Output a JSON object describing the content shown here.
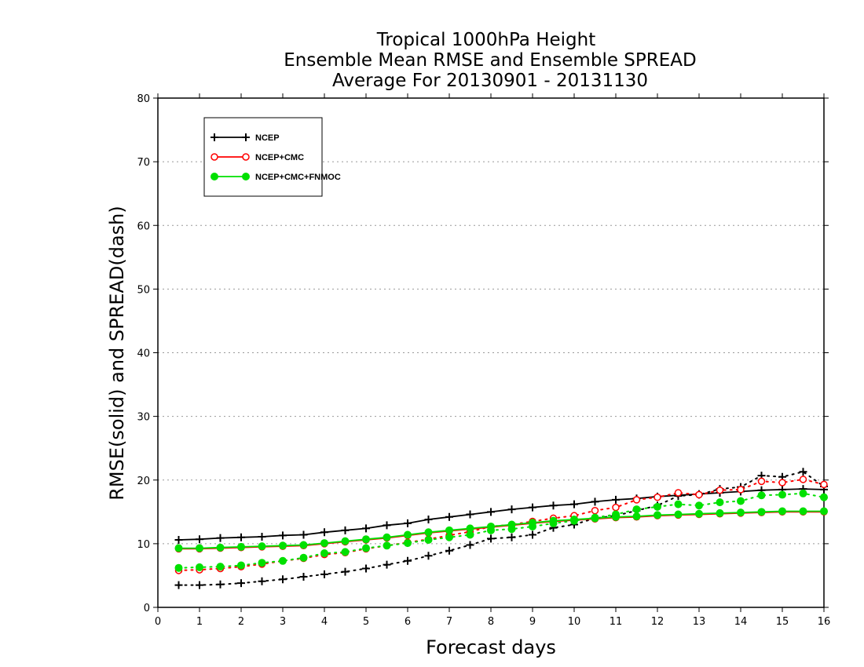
{
  "chart_data": {
    "type": "line",
    "title_lines": [
      "Tropical 1000hPa Height",
      "Ensemble Mean RMSE and Ensemble SPREAD",
      "Average For 20130901 - 20131130"
    ],
    "xlabel": "Forecast days",
    "ylabel": "RMSE(solid) and SPREAD(dash)",
    "xlim": [
      0,
      16
    ],
    "ylim": [
      0,
      80
    ],
    "xticks": [
      0,
      1,
      2,
      3,
      4,
      5,
      6,
      7,
      8,
      9,
      10,
      11,
      12,
      13,
      14,
      15,
      16
    ],
    "yticks": [
      0,
      10,
      20,
      30,
      40,
      50,
      60,
      70,
      80
    ],
    "grid": "horizontal dotted",
    "legend_position": "top-left",
    "x": [
      0.5,
      1,
      1.5,
      2,
      2.5,
      3,
      3.5,
      4,
      4.5,
      5,
      5.5,
      6,
      6.5,
      7,
      7.5,
      8,
      8.5,
      9,
      9.5,
      10,
      10.5,
      11,
      11.5,
      12,
      12.5,
      13,
      13.5,
      14,
      14.5,
      15,
      15.5,
      16
    ],
    "series": [
      {
        "name": "NCEP",
        "color": "#000000",
        "marker": "plus",
        "rmse": [
          10.6,
          10.7,
          10.9,
          11.0,
          11.1,
          11.3,
          11.4,
          11.8,
          12.1,
          12.4,
          12.9,
          13.2,
          13.8,
          14.2,
          14.6,
          15.0,
          15.4,
          15.7,
          16.0,
          16.2,
          16.6,
          16.9,
          17.1,
          17.4,
          17.6,
          17.8,
          18.0,
          18.2,
          18.4,
          18.5,
          18.6,
          18.5
        ],
        "spread": [
          3.5,
          3.5,
          3.6,
          3.8,
          4.1,
          4.4,
          4.8,
          5.2,
          5.6,
          6.1,
          6.7,
          7.3,
          8.1,
          8.9,
          9.8,
          10.8,
          11.0,
          11.4,
          12.5,
          13.0,
          14.0,
          14.4,
          15.2,
          16.0,
          17.5,
          17.7,
          18.6,
          18.9,
          20.7,
          20.5,
          21.3,
          19.0
        ]
      },
      {
        "name": "NCEP+CMC",
        "color": "#ff0000",
        "marker": "open-circle",
        "rmse": [
          9.2,
          9.2,
          9.3,
          9.4,
          9.5,
          9.6,
          9.7,
          10.0,
          10.3,
          10.6,
          10.9,
          11.3,
          11.7,
          12.0,
          12.3,
          12.6,
          12.9,
          13.2,
          13.5,
          13.7,
          13.9,
          14.1,
          14.2,
          14.4,
          14.5,
          14.6,
          14.7,
          14.8,
          14.9,
          15.0,
          15.0,
          15.0
        ],
        "spread": [
          5.8,
          5.9,
          6.1,
          6.4,
          6.8,
          7.3,
          7.7,
          8.3,
          8.6,
          9.2,
          9.7,
          10.2,
          10.7,
          11.3,
          11.9,
          12.7,
          13.0,
          13.5,
          14.0,
          14.4,
          15.2,
          15.7,
          16.9,
          17.3,
          18.0,
          17.7,
          18.4,
          18.5,
          19.8,
          19.6,
          20.1,
          19.3
        ]
      },
      {
        "name": "NCEP+CMC+FNMOC",
        "color": "#00e000",
        "marker": "filled-circle",
        "rmse": [
          9.3,
          9.3,
          9.4,
          9.5,
          9.6,
          9.7,
          9.8,
          10.1,
          10.4,
          10.7,
          11.0,
          11.4,
          11.8,
          12.1,
          12.4,
          12.7,
          13.0,
          13.3,
          13.6,
          13.8,
          14.0,
          14.2,
          14.3,
          14.5,
          14.6,
          14.7,
          14.8,
          14.9,
          15.0,
          15.1,
          15.1,
          15.1
        ],
        "spread": [
          6.2,
          6.3,
          6.4,
          6.6,
          7.0,
          7.3,
          7.8,
          8.5,
          8.7,
          9.3,
          9.7,
          10.1,
          10.6,
          11.0,
          11.4,
          12.1,
          12.3,
          12.7,
          13.2,
          13.6,
          14.1,
          14.6,
          15.4,
          15.8,
          16.2,
          16.0,
          16.5,
          16.7,
          17.6,
          17.7,
          17.9,
          17.3
        ]
      }
    ]
  }
}
